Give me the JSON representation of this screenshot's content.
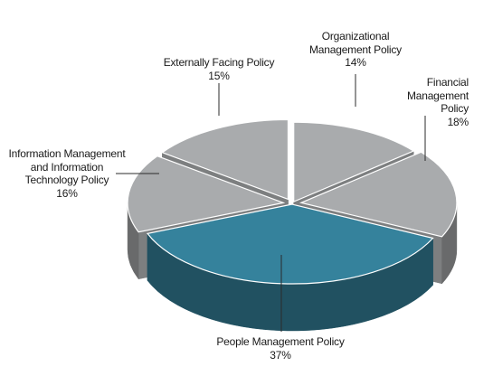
{
  "chart_data": {
    "type": "pie",
    "style": "3d-exploded",
    "legend": "none",
    "slices": [
      {
        "label": "Organizational\nManagement Policy",
        "value": 14,
        "value_label": "14%",
        "color": "#a9abad"
      },
      {
        "label": "Financial\nManagement\nPolicy",
        "value": 18,
        "value_label": "18%",
        "color": "#a9abad"
      },
      {
        "label": "People Management Policy",
        "value": 37,
        "value_label": "37%",
        "color": "#35829c"
      },
      {
        "label": "Information Management\nand Information\nTechnology Policy",
        "value": 16,
        "value_label": "16%",
        "color": "#a9abad"
      },
      {
        "label": "Externally Facing Policy",
        "value": 15,
        "value_label": "15%",
        "color": "#a9abad"
      }
    ]
  }
}
